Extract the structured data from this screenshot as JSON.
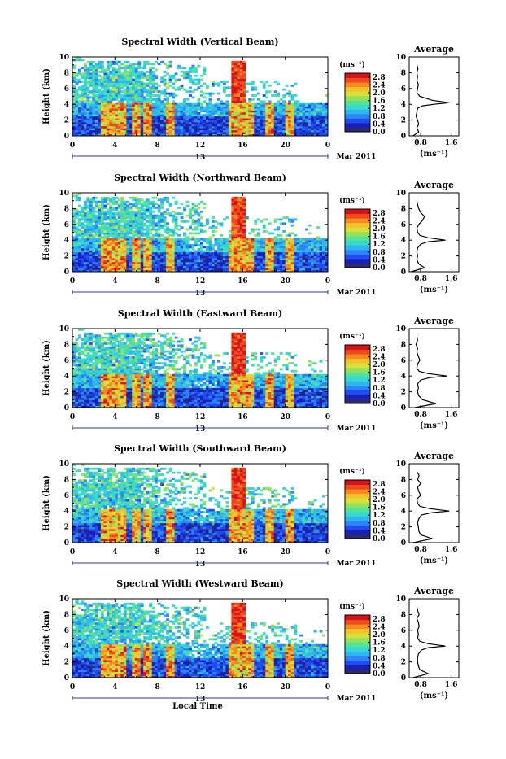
{
  "chart_data": [
    {
      "type": "heatmap",
      "title": "Spectral Width (Vertical Beam)",
      "ylabel": "Height (km)",
      "xticks": [
        "0",
        "4",
        "8",
        "12",
        "16",
        "20",
        "0"
      ],
      "yticks": [
        "0",
        "2",
        "4",
        "6",
        "8",
        "10"
      ],
      "xlim": [
        0,
        24
      ],
      "ylim": [
        0,
        10
      ],
      "date_label": "13",
      "month_label": "Mar 2011",
      "colorbar": {
        "unit": "(ms⁻¹)",
        "ticks": [
          "2.8",
          "2.4",
          "2.0",
          "1.6",
          "1.2",
          "0.8",
          "0.4",
          "0.0"
        ],
        "range": [
          0,
          3.0
        ]
      },
      "average": {
        "title": "Average",
        "xlabel": "(ms⁻¹)",
        "xticks": [
          "0.8",
          "1.6"
        ],
        "yticks": [
          "0",
          "2",
          "4",
          "6",
          "8",
          "10"
        ],
        "xlim": [
          0.5,
          1.8
        ],
        "ylim": [
          0,
          10
        ],
        "x": [
          0.6,
          0.75,
          0.7,
          0.75,
          0.72,
          0.68,
          0.7,
          0.72,
          0.85,
          1.15,
          1.55,
          1.1,
          0.78,
          0.7,
          0.72,
          0.74,
          0.7,
          0.72,
          0.7,
          0.73,
          0.7
        ],
        "y": [
          0,
          0.5,
          1,
          1.5,
          2,
          2.5,
          3,
          3.5,
          3.8,
          4.0,
          4.2,
          4.5,
          5,
          5.5,
          6,
          6.5,
          7,
          7.5,
          8,
          8.5,
          9
        ]
      }
    },
    {
      "type": "heatmap",
      "title": "Spectral Width (Northward Beam)",
      "ylabel": "Height (km)",
      "xticks": [
        "0",
        "4",
        "8",
        "12",
        "16",
        "20",
        "0"
      ],
      "yticks": [
        "0",
        "2",
        "4",
        "6",
        "8",
        "10"
      ],
      "xlim": [
        0,
        24
      ],
      "ylim": [
        0,
        10
      ],
      "date_label": "13",
      "month_label": "Mar 2011",
      "colorbar": {
        "unit": "(ms⁻¹)",
        "ticks": [
          "2.8",
          "2.4",
          "2.0",
          "1.6",
          "1.2",
          "0.8",
          "0.4",
          "0.0"
        ],
        "range": [
          0,
          3.0
        ]
      },
      "average": {
        "title": "Average",
        "xlabel": "(ms⁻¹)",
        "xticks": [
          "0.8",
          "1.6"
        ],
        "yticks": [
          "0",
          "2",
          "4",
          "6",
          "8",
          "10"
        ],
        "xlim": [
          0.5,
          1.8
        ],
        "ylim": [
          0,
          10
        ],
        "x": [
          0.55,
          0.9,
          0.75,
          0.7,
          0.72,
          0.7,
          0.72,
          0.8,
          1.0,
          1.45,
          1.0,
          0.78,
          0.72,
          0.7,
          0.75,
          0.85,
          0.9,
          0.8,
          0.75,
          0.72,
          0.7
        ],
        "y": [
          0,
          0.5,
          1,
          1.5,
          2,
          2.5,
          3,
          3.5,
          3.8,
          4.0,
          4.3,
          4.6,
          5,
          5.5,
          6,
          6.5,
          7,
          7.5,
          8,
          8.5,
          9
        ]
      }
    },
    {
      "type": "heatmap",
      "title": "Spectral Width (Eastward Beam)",
      "ylabel": "Height (km)",
      "xticks": [
        "0",
        "4",
        "8",
        "12",
        "16",
        "20",
        "0"
      ],
      "yticks": [
        "0",
        "2",
        "4",
        "6",
        "8",
        "10"
      ],
      "xlim": [
        0,
        24
      ],
      "ylim": [
        0,
        10
      ],
      "date_label": "13",
      "month_label": "Mar 2011",
      "colorbar": {
        "unit": "(ms⁻¹)",
        "ticks": [
          "2.8",
          "2.4",
          "2.0",
          "1.6",
          "1.2",
          "0.8",
          "0.4",
          "0.0"
        ],
        "range": [
          0,
          3.0
        ]
      },
      "average": {
        "title": "Average",
        "xlabel": "(ms⁻¹)",
        "xticks": [
          "0.8",
          "1.6"
        ],
        "yticks": [
          "0",
          "2",
          "4",
          "6",
          "8",
          "10"
        ],
        "xlim": [
          0.5,
          1.8
        ],
        "ylim": [
          0,
          10
        ],
        "x": [
          0.65,
          1.2,
          0.85,
          0.75,
          0.72,
          0.74,
          0.72,
          0.8,
          1.05,
          1.5,
          1.0,
          0.76,
          0.7,
          0.72,
          0.78,
          0.74,
          0.7,
          0.72,
          0.68,
          0.72,
          0.7
        ],
        "y": [
          0,
          0.5,
          1,
          1.5,
          2,
          2.5,
          3,
          3.5,
          3.8,
          4.0,
          4.3,
          4.6,
          5,
          5.5,
          6,
          6.5,
          7,
          7.5,
          8,
          8.5,
          9
        ]
      }
    },
    {
      "type": "heatmap",
      "title": "Spectral Width (Southward Beam)",
      "ylabel": "Height (km)",
      "xticks": [
        "0",
        "4",
        "8",
        "12",
        "16",
        "20",
        "0"
      ],
      "yticks": [
        "0",
        "2",
        "4",
        "6",
        "8",
        "10"
      ],
      "xlim": [
        0,
        24
      ],
      "ylim": [
        0,
        10
      ],
      "date_label": "13",
      "month_label": "Mar 2011",
      "colorbar": {
        "unit": "(ms⁻¹)",
        "ticks": [
          "2.8",
          "2.4",
          "2.0",
          "1.6",
          "1.2",
          "0.8",
          "0.4",
          "0.0"
        ],
        "range": [
          0,
          3.0
        ]
      },
      "average": {
        "title": "Average",
        "xlabel": "(ms⁻¹)",
        "xticks": [
          "0.8",
          "1.6"
        ],
        "yticks": [
          "0",
          "2",
          "4",
          "6",
          "8",
          "10"
        ],
        "xlim": [
          0.5,
          1.8
        ],
        "ylim": [
          0,
          10
        ],
        "x": [
          0.6,
          1.1,
          0.8,
          0.75,
          0.74,
          0.72,
          0.75,
          0.82,
          1.1,
          1.55,
          1.05,
          0.78,
          0.72,
          0.7,
          0.8,
          0.75,
          0.72,
          0.8,
          0.72,
          0.76,
          0.7
        ],
        "y": [
          0,
          0.5,
          1,
          1.5,
          2,
          2.5,
          3,
          3.5,
          3.8,
          4.0,
          4.3,
          4.6,
          5,
          5.5,
          6,
          6.5,
          7,
          7.5,
          8,
          8.5,
          9
        ]
      }
    },
    {
      "type": "heatmap",
      "title": "Spectral Width (Westward Beam)",
      "ylabel": "Height (km)",
      "xlabel": "Local Time",
      "xticks": [
        "0",
        "4",
        "8",
        "12",
        "16",
        "20",
        "0"
      ],
      "yticks": [
        "0",
        "2",
        "4",
        "6",
        "8",
        "10"
      ],
      "xlim": [
        0,
        24
      ],
      "ylim": [
        0,
        10
      ],
      "date_label": "13",
      "month_label": "Mar 2011",
      "colorbar": {
        "unit": "(ms⁻¹)",
        "ticks": [
          "2.8",
          "2.4",
          "2.0",
          "1.6",
          "1.2",
          "0.8",
          "0.4",
          "0.0"
        ],
        "range": [
          0,
          3.0
        ]
      },
      "average": {
        "title": "Average",
        "xlabel": "(ms⁻¹)",
        "xticks": [
          "0.8",
          "1.6"
        ],
        "yticks": [
          "0",
          "2",
          "4",
          "6",
          "8",
          "10"
        ],
        "xlim": [
          0.5,
          1.8
        ],
        "ylim": [
          0,
          10
        ],
        "x": [
          0.6,
          1.0,
          0.78,
          0.74,
          0.72,
          0.72,
          0.74,
          0.82,
          1.0,
          1.45,
          1.0,
          0.78,
          0.72,
          0.74,
          0.72,
          0.76,
          0.74,
          0.7,
          0.76,
          0.72,
          0.7
        ],
        "y": [
          0,
          0.5,
          1,
          1.5,
          2,
          2.5,
          3,
          3.5,
          3.8,
          4.0,
          4.3,
          4.6,
          5,
          5.5,
          6,
          6.5,
          7,
          7.5,
          8,
          8.5,
          9
        ]
      }
    }
  ]
}
